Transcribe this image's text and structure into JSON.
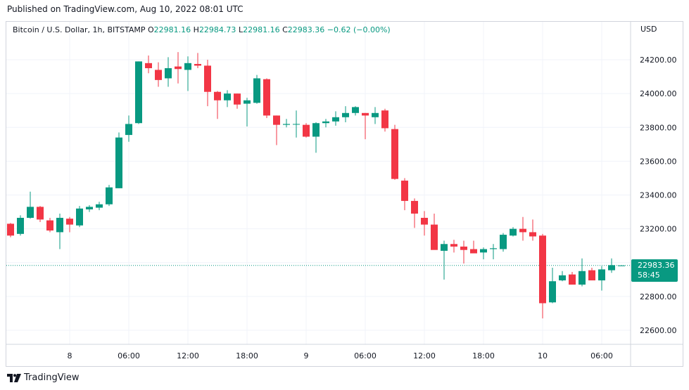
{
  "header": {
    "published": "Published on TradingView.com, Aug 10, 2022 08:01 UTC"
  },
  "legend": {
    "symbol": "Bitcoin / U.S. Dollar, 1h, BITSTAMP",
    "o_label": "O",
    "o_value": "22981.16",
    "h_label": "H",
    "h_value": "22984.73",
    "l_label": "L",
    "l_value": "22981.16",
    "c_label": "C",
    "c_value": "22983.36",
    "change": "−0.62 (−0.00%)"
  },
  "axis": {
    "currency": "USD"
  },
  "last_price": {
    "price": "22983.36",
    "countdown": "58:45"
  },
  "footer": {
    "brand": "TradingView"
  },
  "colors": {
    "up": "#089981",
    "down": "#f23645",
    "grid": "#f0f3fa",
    "border": "#d1d4dc"
  },
  "chart_data": {
    "type": "candlestick",
    "y_axis": {
      "range": [
        22520,
        24380
      ],
      "ticks": [
        22600,
        22800,
        23000,
        23200,
        23400,
        23600,
        23800,
        24000,
        24200
      ],
      "tick_labels": [
        "22600.00",
        "22800.00",
        "23000.00",
        "23200.00",
        "23400.00",
        "23600.00",
        "23800.00",
        "24000.00",
        "24200.00"
      ]
    },
    "x_ticks": [
      {
        "index": 6,
        "label": "8"
      },
      {
        "index": 12,
        "label": "06:00"
      },
      {
        "index": 18,
        "label": "12:00"
      },
      {
        "index": 24,
        "label": "18:00"
      },
      {
        "index": 30,
        "label": "9"
      },
      {
        "index": 36,
        "label": "06:00"
      },
      {
        "index": 42,
        "label": "12:00"
      },
      {
        "index": 48,
        "label": "18:00"
      },
      {
        "index": 54,
        "label": "10"
      },
      {
        "index": 60,
        "label": "06:00"
      }
    ],
    "candles": [
      [
        23230,
        23235,
        23150,
        23160
      ],
      [
        23170,
        23280,
        23160,
        23265
      ],
      [
        23265,
        23420,
        23260,
        23330
      ],
      [
        23330,
        23335,
        23240,
        23255
      ],
      [
        23250,
        23265,
        23180,
        23190
      ],
      [
        23180,
        23290,
        23080,
        23265
      ],
      [
        23260,
        23270,
        23180,
        23225
      ],
      [
        23220,
        23335,
        23210,
        23320
      ],
      [
        23315,
        23340,
        23300,
        23330
      ],
      [
        23325,
        23360,
        23310,
        23345
      ],
      [
        23345,
        23460,
        23335,
        23445
      ],
      [
        23440,
        23770,
        23440,
        23740
      ],
      [
        23755,
        23870,
        23715,
        23820
      ],
      [
        23825,
        24190,
        23820,
        24190
      ],
      [
        24180,
        24225,
        24120,
        24150
      ],
      [
        24140,
        24185,
        24040,
        24080
      ],
      [
        24090,
        24215,
        24040,
        24150
      ],
      [
        24160,
        24245,
        24060,
        24145
      ],
      [
        24140,
        24220,
        24015,
        24180
      ],
      [
        24175,
        24240,
        24150,
        24165
      ],
      [
        24165,
        24200,
        23925,
        24010
      ],
      [
        24010,
        24015,
        23850,
        23960
      ],
      [
        23960,
        24020,
        23920,
        24000
      ],
      [
        24000,
        24000,
        23910,
        23935
      ],
      [
        23940,
        23975,
        23805,
        23960
      ],
      [
        23945,
        24110,
        23940,
        24090
      ],
      [
        24085,
        24090,
        23855,
        23870
      ],
      [
        23870,
        23870,
        23695,
        23815
      ],
      [
        23815,
        23850,
        23800,
        23820
      ],
      [
        23820,
        23900,
        23740,
        23820
      ],
      [
        23815,
        23825,
        23740,
        23745
      ],
      [
        23745,
        23830,
        23650,
        23825
      ],
      [
        23825,
        23850,
        23800,
        23835
      ],
      [
        23835,
        23895,
        23810,
        23860
      ],
      [
        23860,
        23925,
        23830,
        23885
      ],
      [
        23885,
        23925,
        23870,
        23920
      ],
      [
        23885,
        23885,
        23730,
        23870
      ],
      [
        23860,
        23920,
        23820,
        23885
      ],
      [
        23900,
        23910,
        23775,
        23795
      ],
      [
        23790,
        23815,
        23490,
        23495
      ],
      [
        23485,
        23500,
        23310,
        23365
      ],
      [
        23365,
        23380,
        23205,
        23290
      ],
      [
        23265,
        23305,
        23160,
        23225
      ],
      [
        23225,
        23290,
        23080,
        23075
      ],
      [
        23070,
        23130,
        22900,
        23110
      ],
      [
        23110,
        23135,
        23060,
        23095
      ],
      [
        23095,
        23130,
        22995,
        23075
      ],
      [
        23080,
        23130,
        23060,
        23055
      ],
      [
        23060,
        23090,
        23020,
        23080
      ],
      [
        23080,
        23110,
        23020,
        23085
      ],
      [
        23080,
        23175,
        23065,
        23165
      ],
      [
        23160,
        23210,
        23155,
        23200
      ],
      [
        23200,
        23270,
        23130,
        23180
      ],
      [
        23180,
        23255,
        23130,
        23155
      ],
      [
        23160,
        23170,
        22670,
        22760
      ],
      [
        22765,
        22970,
        22760,
        22890
      ],
      [
        22895,
        22950,
        22890,
        22925
      ],
      [
        22930,
        22945,
        22880,
        22870
      ],
      [
        22870,
        23025,
        22860,
        22950
      ],
      [
        22955,
        22970,
        22905,
        22895
      ],
      [
        22895,
        22980,
        22835,
        22960
      ],
      [
        22955,
        23025,
        22940,
        22985
      ],
      [
        22981.16,
        22984.73,
        22981.16,
        22983.36
      ]
    ],
    "last_price": 22983.36
  }
}
